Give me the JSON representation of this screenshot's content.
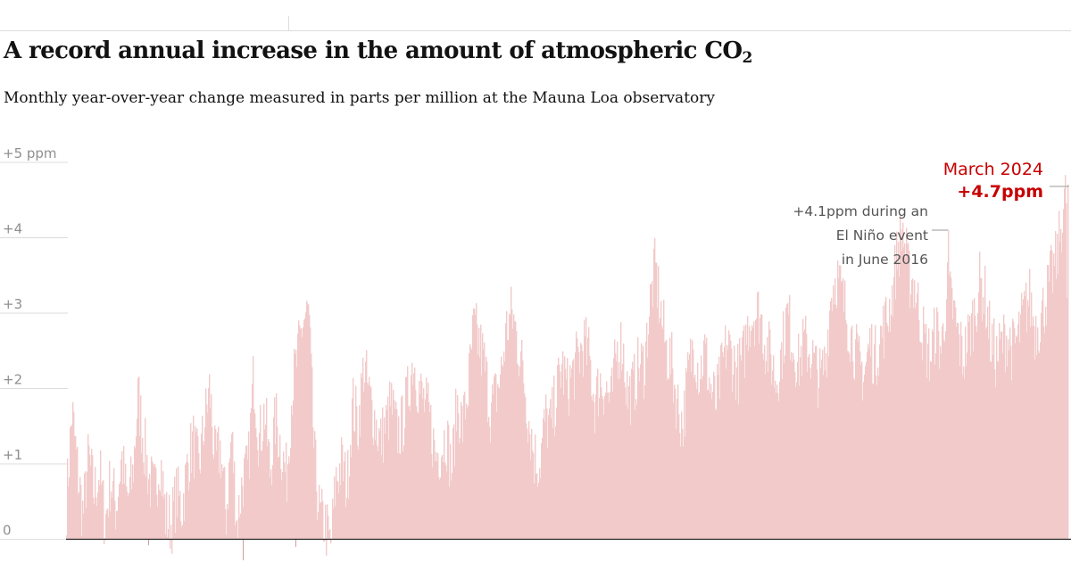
{
  "title_main": "A record annual increase in the amount of atmospheric CO",
  "title_sub": "2",
  "subtitle": "Monthly year-over-year change measured in parts per million at the Mauna Loa observatory",
  "chart_data": {
    "type": "bar",
    "title": "A record annual increase in the amount of atmospheric CO2",
    "subtitle": "Monthly year-over-year change measured in parts per million at the Mauna Loa observatory",
    "ylim": [
      -0.3,
      5
    ],
    "y_ticks": [
      {
        "value": 0,
        "label": "0"
      },
      {
        "value": 1,
        "label": "+1"
      },
      {
        "value": 2,
        "label": "+2"
      },
      {
        "value": 3,
        "label": "+3"
      },
      {
        "value": 4,
        "label": "+4"
      },
      {
        "value": 5,
        "label": "+5 ppm"
      }
    ],
    "grid": true,
    "bar_color": "#f2caca",
    "highlight_color": "#c70000",
    "annotation_color": "#555555",
    "series_anchor_values": [
      0.5,
      1.7,
      0.9,
      0.3,
      1.1,
      0.6,
      0.9,
      0.2,
      0.8,
      0.4,
      1.1,
      0.5,
      0.8,
      1.9,
      1.3,
      0.8,
      0.6,
      1.1,
      0.3,
      0.2,
      0.6,
      0.4,
      1.0,
      1.3,
      0.9,
      1.5,
      2.0,
      1.0,
      1.2,
      0.3,
      1.4,
      0.2,
      0.8,
      0.9,
      2.2,
      1.3,
      1.7,
      0.9,
      1.6,
      1.2,
      0.8,
      2.0,
      2.4,
      2.9,
      3.0,
      1.1,
      0.3,
      0.2,
      -0.1,
      0.8,
      1.0,
      0.7,
      1.8,
      1.5,
      2.3,
      1.9,
      1.6,
      1.3,
      1.5,
      1.8,
      1.4,
      1.5,
      1.9,
      2.4,
      2.0,
      1.8,
      1.6,
      1.1,
      1.2,
      1.4,
      0.9,
      1.8,
      1.5,
      2.0,
      2.8,
      2.6,
      2.3,
      1.7,
      1.9,
      2.2,
      2.8,
      3.0,
      2.6,
      2.2,
      1.6,
      1.1,
      1.0,
      1.6,
      1.5,
      1.9,
      2.3,
      2.0,
      2.2,
      2.4,
      2.6,
      2.4,
      1.8,
      2.1,
      2.0,
      1.8,
      2.5,
      2.6,
      1.9,
      2.0,
      2.3,
      2.3,
      3.1,
      3.6,
      3.0,
      2.5,
      2.3,
      1.8,
      1.5,
      2.2,
      2.6,
      2.2,
      2.5,
      2.0,
      1.8,
      2.2,
      2.6,
      2.4,
      2.2,
      2.4,
      2.9,
      3.0,
      3.0,
      2.6,
      2.4,
      2.1,
      2.5,
      3.0,
      2.6,
      2.3,
      2.6,
      2.5,
      2.3,
      2.1,
      2.4,
      3.3,
      3.5,
      3.2,
      2.9,
      2.6,
      2.3,
      2.2,
      2.6,
      2.4,
      2.7,
      2.9,
      3.2,
      3.8,
      4.1,
      3.5,
      3.4,
      3.0,
      2.6,
      2.4,
      2.8,
      2.5,
      3.3,
      3.1,
      2.7,
      2.4,
      2.7,
      3.0,
      3.4,
      3.2,
      2.6,
      2.4,
      2.6,
      2.7,
      2.5,
      2.7,
      3.0,
      3.2,
      2.8,
      2.9,
      3.2,
      3.5,
      3.7,
      4.3,
      4.7
    ],
    "annotations": [
      {
        "lines": [
          "+4.1ppm during an",
          "El Niño event",
          "in June 2016"
        ],
        "value": 4.1,
        "date": "June 2016"
      },
      {
        "lines": [
          "March 2024",
          "+4.7ppm"
        ],
        "value": 4.7,
        "date": "March 2024"
      }
    ]
  }
}
